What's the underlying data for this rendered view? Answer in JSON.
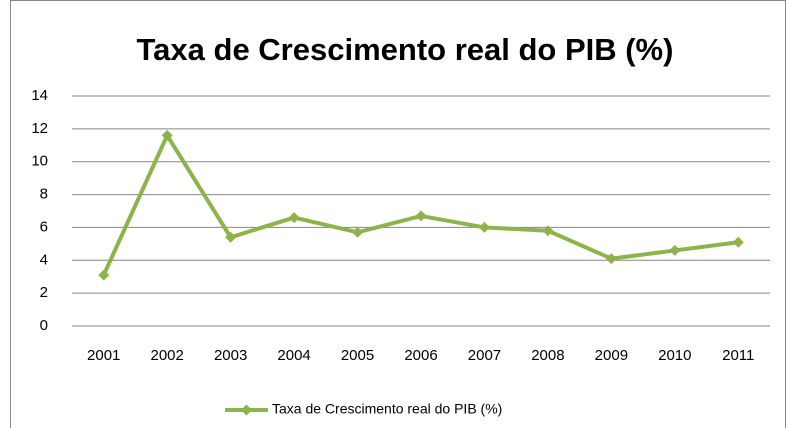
{
  "chart_data": {
    "type": "line",
    "title": "Taxa de Crescimento real do PIB (%)",
    "categories": [
      "2001",
      "2002",
      "2003",
      "2004",
      "2005",
      "2006",
      "2007",
      "2008",
      "2009",
      "2010",
      "2011"
    ],
    "series": [
      {
        "name": "Taxa de Crescimento real do PIB (%)",
        "color": "#8db34a",
        "values": [
          3.1,
          11.6,
          5.4,
          6.6,
          5.7,
          6.7,
          6.0,
          5.8,
          4.1,
          4.6,
          5.1
        ]
      }
    ],
    "ylim": [
      0,
      14
    ],
    "yticks": [
      0,
      2,
      4,
      6,
      8,
      10,
      12,
      14
    ],
    "grid": true,
    "legend": "bottom"
  }
}
